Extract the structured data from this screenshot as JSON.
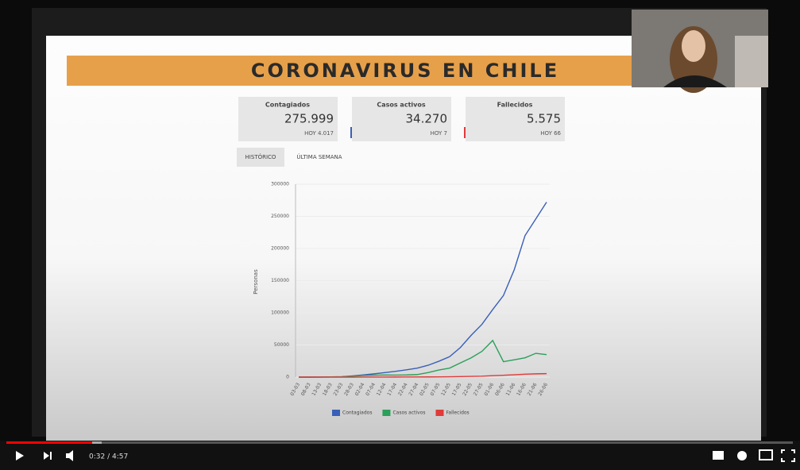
{
  "slide": {
    "title": "CORONAVIRUS EN CHILE",
    "cards": [
      {
        "label": "Contagiados",
        "value": "275.999",
        "today": "HOY 4.017"
      },
      {
        "label": "Casos activos",
        "value": "34.270",
        "today": "HOY 7"
      },
      {
        "label": "Fallecidos",
        "value": "5.575",
        "today": "HOY 66"
      }
    ],
    "tabs": [
      "HISTÓRICO",
      "ÚLTIMA SEMANA"
    ]
  },
  "chart_data": {
    "type": "line",
    "ylabel": "Personas",
    "categories": [
      "03-03",
      "08-03",
      "13-03",
      "18-03",
      "23-03",
      "28-03",
      "02-04",
      "07-04",
      "12-04",
      "17-04",
      "22-04",
      "27-04",
      "02-05",
      "07-05",
      "12-05",
      "17-05",
      "22-05",
      "27-05",
      "01-06",
      "06-06",
      "11-06",
      "16-06",
      "21-06",
      "26-06"
    ],
    "series": [
      {
        "name": "Contagiados",
        "color": "#3a5fb8",
        "values": [
          0,
          0,
          100,
          300,
          700,
          1900,
          3400,
          5100,
          7000,
          9000,
          11300,
          14000,
          18400,
          24600,
          31700,
          46000,
          65000,
          82000,
          105000,
          127000,
          167000,
          220000,
          246000,
          272000
        ]
      },
      {
        "name": "Casos activos",
        "color": "#2aa05a",
        "values": [
          0,
          0,
          100,
          300,
          600,
          1500,
          2500,
          3000,
          3300,
          3200,
          3400,
          4000,
          7000,
          11000,
          14000,
          22000,
          30000,
          40000,
          57000,
          24000,
          27000,
          30000,
          37000,
          35000
        ]
      },
      {
        "name": "Fallecidos",
        "color": "#e03a3a",
        "values": [
          0,
          0,
          0,
          0,
          0,
          10,
          30,
          60,
          100,
          150,
          200,
          250,
          300,
          400,
          500,
          800,
          1100,
          1500,
          2300,
          2900,
          3600,
          4500,
          5100,
          5400
        ]
      }
    ],
    "ylim": [
      0,
      300000
    ],
    "yticks": [
      0,
      50000,
      100000,
      150000,
      200000,
      250000,
      300000
    ],
    "grid": true
  },
  "player": {
    "time": "0:32 / 4:57"
  }
}
